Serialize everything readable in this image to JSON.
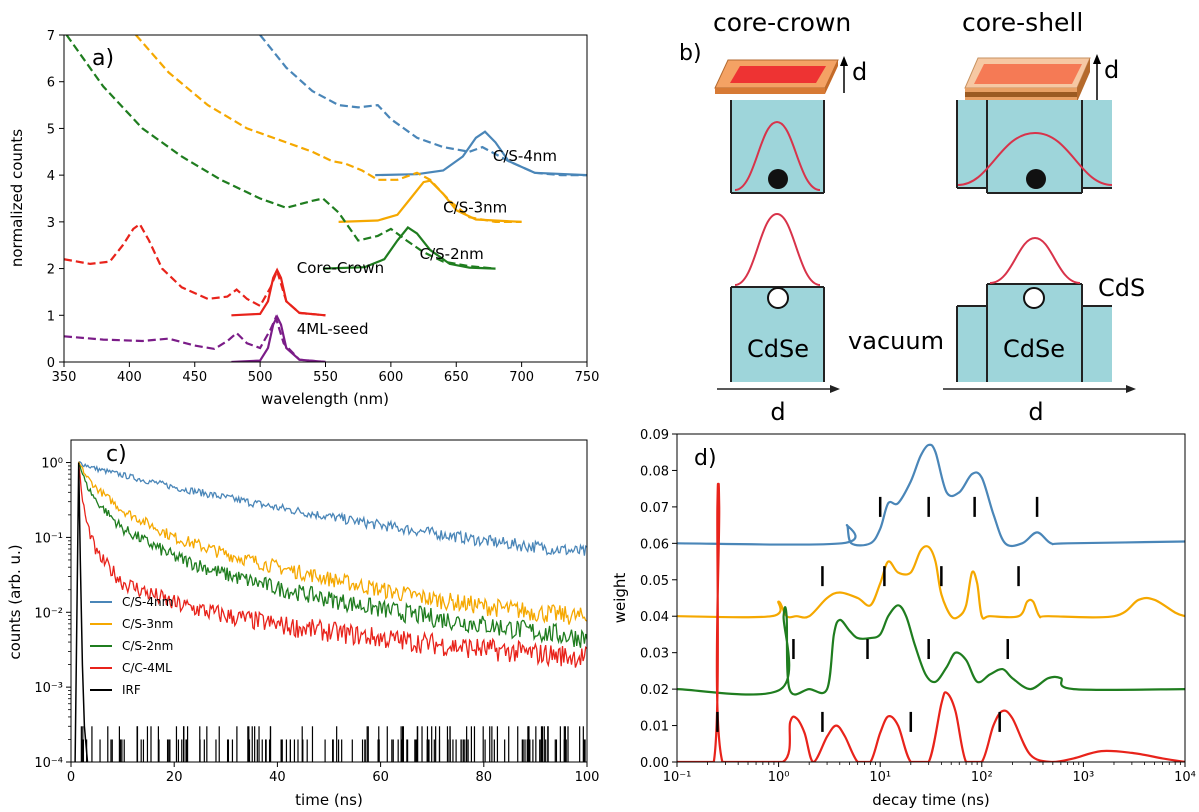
{
  "panels": {
    "a": {
      "letter": "a)",
      "xlabel": "wavelength (nm)",
      "ylabel": "normalized counts",
      "xlim": [
        350,
        750
      ],
      "ylim": [
        0,
        7
      ],
      "xticks": [
        350,
        400,
        450,
        500,
        550,
        600,
        650,
        700,
        750
      ],
      "yticks": [
        0,
        1,
        2,
        3,
        4,
        5,
        6,
        7
      ],
      "colors": {
        "C/S-4nm": "#4a86b8",
        "C/S-3nm": "#f5a800",
        "C/S-2nm": "#1f7d1f",
        "Core-Crown": "#e8231b",
        "4ML-seed": "#7b1c88"
      },
      "labels": [
        {
          "text": "C/S-4nm",
          "x": 678,
          "y": 4.3
        },
        {
          "text": "C/S-3nm",
          "x": 640,
          "y": 3.2
        },
        {
          "text": "C/S-2nm",
          "x": 622,
          "y": 2.2
        },
        {
          "text": "Core-Crown",
          "x": 528,
          "y": 1.9
        },
        {
          "text": "4ML-seed",
          "x": 528,
          "y": 0.6
        }
      ]
    },
    "b": {
      "letter": "b)",
      "core_crown_title": "core-crown",
      "core_shell_title": "core-shell",
      "d": "d",
      "cdse": "CdSe",
      "cds": "CdS",
      "vacuum": "vacuum"
    },
    "c": {
      "letter": "c)",
      "xlabel": "time (ns)",
      "ylabel": "counts (arb. u.)",
      "xlim": [
        0,
        100
      ],
      "xticks": [
        0,
        20,
        40,
        60,
        80,
        100
      ],
      "ytick_labels": [
        "10⁻⁴",
        "10⁻³",
        "10⁻²",
        "10⁻¹",
        "10⁰"
      ],
      "legend": [
        {
          "name": "C/S-4nm",
          "color": "#4a86b8"
        },
        {
          "name": "C/S-3nm",
          "color": "#f5a800"
        },
        {
          "name": "C/S-2nm",
          "color": "#1f7d1f"
        },
        {
          "name": "C/C-4ML",
          "color": "#e8231b"
        },
        {
          "name": "IRF",
          "color": "#000000"
        }
      ]
    },
    "d": {
      "letter": "d)",
      "xlabel": "decay time (ns)",
      "ylabel": "weight",
      "ylim": [
        0,
        0.09
      ],
      "yticks": [
        "0.00",
        "0.01",
        "0.02",
        "0.03",
        "0.04",
        "0.05",
        "0.06",
        "0.07",
        "0.08",
        "0.09"
      ],
      "xtick_labels": [
        "10⁻¹",
        "10⁰",
        "10¹",
        "10²",
        "10³",
        "10⁴"
      ]
    }
  },
  "chart_data": [
    {
      "panel": "a",
      "type": "line",
      "xlabel": "wavelength (nm)",
      "ylabel": "normalized counts",
      "xlim": [
        350,
        750
      ],
      "ylim": [
        0,
        7
      ],
      "series": [
        {
          "name": "C/S-4nm absorption",
          "style": "dashed",
          "color": "#4a86b8",
          "x": [
            500,
            520,
            540,
            560,
            575,
            590,
            600,
            620,
            640,
            660,
            670,
            690,
            710,
            730,
            750
          ],
          "y": [
            7.0,
            6.3,
            5.8,
            5.5,
            5.45,
            5.5,
            5.2,
            4.8,
            4.6,
            4.5,
            4.6,
            4.3,
            4.05,
            4.0,
            4.0
          ]
        },
        {
          "name": "C/S-4nm emission",
          "style": "solid",
          "color": "#4a86b8",
          "x": [
            588,
            620,
            640,
            655,
            665,
            672,
            680,
            690,
            710,
            750
          ],
          "y": [
            4.0,
            4.02,
            4.1,
            4.4,
            4.8,
            4.93,
            4.7,
            4.3,
            4.05,
            4.0
          ]
        },
        {
          "name": "C/S-3nm absorption",
          "style": "dashed",
          "color": "#f5a800",
          "x": [
            405,
            430,
            460,
            490,
            520,
            540,
            555,
            565,
            578,
            590,
            605,
            620,
            630,
            645,
            660,
            680,
            700
          ],
          "y": [
            7.0,
            6.2,
            5.5,
            5.0,
            4.7,
            4.5,
            4.3,
            4.25,
            4.1,
            3.9,
            3.9,
            4.05,
            3.9,
            3.45,
            3.1,
            3.0,
            3.0
          ]
        },
        {
          "name": "C/S-3nm emission",
          "style": "solid",
          "color": "#f5a800",
          "x": [
            560,
            590,
            605,
            615,
            625,
            630,
            640,
            650,
            665,
            700
          ],
          "y": [
            3.0,
            3.03,
            3.15,
            3.5,
            3.85,
            3.88,
            3.6,
            3.25,
            3.05,
            3.0
          ]
        },
        {
          "name": "C/S-2nm absorption",
          "style": "dashed",
          "color": "#1f7d1f",
          "x": [
            352,
            380,
            410,
            440,
            470,
            500,
            520,
            540,
            548,
            560,
            575,
            590,
            600,
            612,
            625,
            640,
            660,
            680
          ],
          "y": [
            7.0,
            5.9,
            5.0,
            4.4,
            3.9,
            3.5,
            3.3,
            3.45,
            3.5,
            3.2,
            2.6,
            2.7,
            2.85,
            2.6,
            2.35,
            2.15,
            2.05,
            2.0
          ]
        },
        {
          "name": "C/S-2nm emission",
          "style": "solid",
          "color": "#1f7d1f",
          "x": [
            548,
            580,
            595,
            605,
            613,
            620,
            630,
            645,
            660,
            680
          ],
          "y": [
            2.0,
            2.03,
            2.2,
            2.6,
            2.88,
            2.75,
            2.4,
            2.1,
            2.02,
            2.0
          ]
        },
        {
          "name": "Core-Crown absorption",
          "style": "dashed",
          "color": "#e8231b",
          "x": [
            350,
            370,
            385,
            395,
            403,
            408,
            415,
            425,
            440,
            460,
            475,
            482,
            490,
            500,
            508,
            513,
            520,
            530,
            550
          ],
          "y": [
            2.2,
            2.1,
            2.15,
            2.5,
            2.85,
            2.95,
            2.6,
            2.0,
            1.6,
            1.35,
            1.4,
            1.55,
            1.35,
            1.2,
            1.6,
            1.95,
            1.3,
            1.05,
            1.0
          ]
        },
        {
          "name": "Core-Crown emission",
          "style": "solid",
          "color": "#e8231b",
          "x": [
            478,
            500,
            506,
            510,
            513,
            516,
            520,
            530,
            550
          ],
          "y": [
            1.0,
            1.03,
            1.3,
            1.8,
            1.97,
            1.8,
            1.3,
            1.05,
            1.0
          ]
        },
        {
          "name": "4ML-seed absorption",
          "style": "dashed",
          "color": "#7b1c88",
          "x": [
            350,
            380,
            410,
            430,
            450,
            465,
            475,
            482,
            490,
            500,
            508,
            512,
            518,
            530,
            550
          ],
          "y": [
            0.55,
            0.48,
            0.45,
            0.5,
            0.35,
            0.28,
            0.45,
            0.62,
            0.4,
            0.3,
            0.7,
            0.95,
            0.4,
            0.05,
            0.0
          ]
        },
        {
          "name": "4ML-seed emission",
          "style": "solid",
          "color": "#7b1c88",
          "x": [
            478,
            500,
            506,
            510,
            513,
            516,
            520,
            530,
            550
          ],
          "y": [
            0.0,
            0.03,
            0.3,
            0.8,
            0.97,
            0.8,
            0.3,
            0.05,
            0.0
          ]
        }
      ]
    },
    {
      "panel": "c",
      "type": "line",
      "xlabel": "time (ns)",
      "ylabel": "counts (arb. u.)",
      "xlim": [
        0,
        100
      ],
      "ylim": [
        0.0001,
        2
      ],
      "yscale": "log",
      "series": [
        {
          "name": "C/S-4nm",
          "color": "#4a86b8",
          "x": [
            1.5,
            5,
            10,
            20,
            30,
            40,
            50,
            60,
            70,
            80,
            90,
            100
          ],
          "y": [
            1.0,
            0.82,
            0.68,
            0.47,
            0.34,
            0.25,
            0.19,
            0.145,
            0.115,
            0.09,
            0.075,
            0.063
          ]
        },
        {
          "name": "C/S-3nm",
          "color": "#f5a800",
          "x": [
            1.5,
            3,
            5,
            10,
            20,
            30,
            40,
            50,
            60,
            70,
            80,
            90,
            100
          ],
          "y": [
            1.0,
            0.65,
            0.45,
            0.23,
            0.1,
            0.06,
            0.04,
            0.028,
            0.02,
            0.015,
            0.012,
            0.01,
            0.0085
          ]
        },
        {
          "name": "C/S-2nm",
          "color": "#1f7d1f",
          "x": [
            1.5,
            3,
            5,
            10,
            20,
            30,
            40,
            50,
            60,
            70,
            80,
            90,
            100
          ],
          "y": [
            1.0,
            0.5,
            0.3,
            0.13,
            0.055,
            0.032,
            0.021,
            0.015,
            0.011,
            0.0085,
            0.0068,
            0.0055,
            0.0045
          ]
        },
        {
          "name": "C/C-4ML",
          "color": "#e8231b",
          "x": [
            1.5,
            2,
            3,
            5,
            10,
            20,
            30,
            40,
            50,
            60,
            70,
            80,
            90,
            100
          ],
          "y": [
            1.0,
            0.4,
            0.16,
            0.06,
            0.025,
            0.013,
            0.009,
            0.0068,
            0.0055,
            0.0045,
            0.0038,
            0.0032,
            0.0028,
            0.0025
          ]
        },
        {
          "name": "IRF",
          "color": "#000000",
          "x": [
            0.8,
            1.2,
            1.5,
            1.8,
            2.2,
            2.6,
            3.2
          ],
          "y": [
            0.0001,
            0.02,
            1.0,
            0.05,
            0.002,
            0.0003,
            0.0001
          ]
        }
      ]
    },
    {
      "panel": "d",
      "type": "line",
      "xlabel": "decay time (ns)",
      "ylabel": "weight",
      "xlim": [
        0.1,
        10000
      ],
      "xscale": "log",
      "ylim": [
        0,
        0.09
      ],
      "series": [
        {
          "name": "C/S-4nm",
          "color": "#4a86b8",
          "x": [
            0.1,
            4.2,
            4.7,
            5.2,
            8,
            10,
            12,
            15,
            20,
            25,
            30,
            35,
            45,
            60,
            80,
            100,
            130,
            170,
            250,
            350,
            480,
            700,
            10000
          ],
          "y": [
            0.06,
            0.06,
            0.065,
            0.06,
            0.06,
            0.064,
            0.071,
            0.071,
            0.077,
            0.084,
            0.087,
            0.085,
            0.074,
            0.074,
            0.079,
            0.078,
            0.068,
            0.06,
            0.06,
            0.063,
            0.06,
            0.06,
            0.0605
          ]
        },
        {
          "name": "C/S-3nm",
          "color": "#f5a800",
          "x": [
            0.1,
            0.85,
            1.0,
            1.2,
            1.5,
            2,
            3,
            4,
            6,
            8,
            10,
            12,
            15,
            20,
            25,
            30,
            35,
            40,
            50,
            60,
            70,
            80,
            90,
            100,
            120,
            230,
            280,
            320,
            370,
            450,
            2000,
            3500,
            5000,
            8000,
            10000
          ],
          "y": [
            0.04,
            0.04,
            0.044,
            0.04,
            0.04,
            0.04,
            0.045,
            0.0465,
            0.045,
            0.043,
            0.049,
            0.055,
            0.052,
            0.052,
            0.058,
            0.059,
            0.055,
            0.046,
            0.04,
            0.04,
            0.043,
            0.052,
            0.049,
            0.04,
            0.04,
            0.04,
            0.044,
            0.044,
            0.04,
            0.04,
            0.04,
            0.0445,
            0.0445,
            0.041,
            0.04
          ]
        },
        {
          "name": "C/S-2nm",
          "color": "#1f7d1f",
          "x": [
            0.1,
            1.05,
            1.12,
            1.2,
            1.28,
            2,
            3,
            3.5,
            4,
            5,
            6,
            8,
            10,
            12,
            15,
            18,
            22,
            28,
            35,
            45,
            55,
            70,
            90,
            120,
            160,
            200,
            300,
            450,
            600,
            800,
            10000
          ],
          "y": [
            0.02,
            0.02,
            0.04,
            0.04,
            0.02,
            0.02,
            0.02,
            0.035,
            0.039,
            0.036,
            0.034,
            0.034,
            0.035,
            0.04,
            0.043,
            0.04,
            0.032,
            0.024,
            0.022,
            0.026,
            0.03,
            0.028,
            0.022,
            0.024,
            0.0255,
            0.023,
            0.02,
            0.023,
            0.023,
            0.02,
            0.02
          ]
        },
        {
          "name": "C/C-4ML",
          "color": "#e8231b",
          "x": [
            0.1,
            0.23,
            0.25,
            0.255,
            0.26,
            0.28,
            1.1,
            1.3,
            1.5,
            1.8,
            2.2,
            3,
            3.7,
            4.5,
            6,
            8,
            10,
            12,
            15,
            20,
            30,
            40,
            45,
            55,
            70,
            100,
            130,
            160,
            200,
            300,
            500,
            800,
            1500,
            3000,
            6000,
            10000
          ],
          "y": [
            0.0,
            0.0,
            0.07,
            0.073,
            0.07,
            0.0,
            0.0,
            0.011,
            0.012,
            0.008,
            0.0,
            0.007,
            0.01,
            0.007,
            0.0,
            0.0,
            0.008,
            0.0125,
            0.01,
            0.0,
            0.0,
            0.016,
            0.019,
            0.014,
            0.0,
            0.0,
            0.01,
            0.014,
            0.012,
            0.002,
            0.0,
            0.001,
            0.003,
            0.0025,
            0.001,
            0.0
          ]
        }
      ],
      "markers": [
        {
          "series": "C/S-4nm",
          "x": [
            10,
            30,
            85,
            350
          ],
          "y": 0.07
        },
        {
          "series": "C/S-3nm",
          "x": [
            2.7,
            11,
            40,
            230
          ],
          "y": 0.051
        },
        {
          "series": "C/S-2nm",
          "x": [
            1.4,
            7.5,
            30,
            180
          ],
          "y": 0.031
        },
        {
          "series": "C/C-4ML",
          "x": [
            0.25,
            2.7,
            20,
            150
          ],
          "y": 0.011
        }
      ]
    }
  ]
}
